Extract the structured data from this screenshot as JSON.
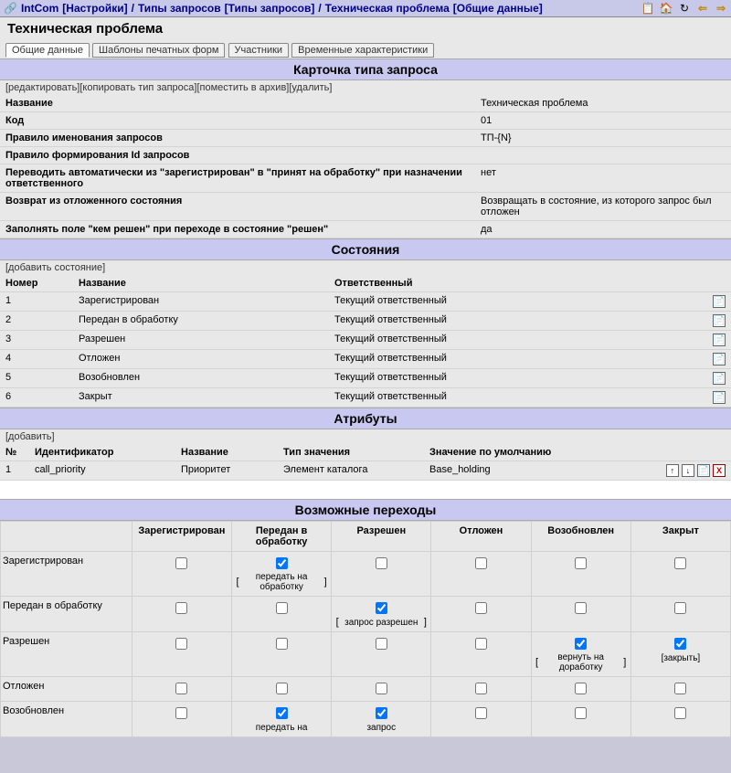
{
  "breadcrumb": {
    "app": "IntCom",
    "seg1": "[Настройки]",
    "sep": " / ",
    "seg2": "Типы запросов",
    "seg2b": "[Типы запросов]",
    "seg3": "Техническая проблема",
    "seg3b": "[Общие данные]"
  },
  "title": "Техническая проблема",
  "tabs": {
    "t0": "Общие данные",
    "t1": "Шаблоны печатных форм",
    "t2": "Участники",
    "t3": "Временные характеристики"
  },
  "card": {
    "heading": "Карточка типа запроса",
    "actions": {
      "edit": "[редактировать]",
      "copy": "[копировать тип запроса]",
      "archive": "[поместить в архив]",
      "delete": "[удалить]"
    },
    "rows": [
      {
        "label": "Название",
        "value": "Техническая проблема"
      },
      {
        "label": "Код",
        "value": "01"
      },
      {
        "label": "Правило именования запросов",
        "value": "ТП-{N}"
      },
      {
        "label": "Правило формирования Id запросов",
        "value": ""
      },
      {
        "label": "Переводить автоматически из \"зарегистрирован\" в \"принят на обработку\" при назначении ответственного",
        "value": "нет"
      },
      {
        "label": "Возврат из отложенного состояния",
        "value": "Возвращать в состояние, из которого запрос был отложен"
      },
      {
        "label": "Заполнять поле \"кем решен\" при переходе в состояние \"решен\"",
        "value": "да"
      }
    ]
  },
  "states": {
    "heading": "Состояния",
    "add": "[добавить состояние]",
    "cols": {
      "num": "Номер",
      "name": "Название",
      "resp": "Ответственный"
    },
    "rows": [
      {
        "num": "1",
        "name": "Зарегистрирован",
        "resp": "Текущий ответственный"
      },
      {
        "num": "2",
        "name": "Передан в обработку",
        "resp": "Текущий ответственный"
      },
      {
        "num": "3",
        "name": "Разрешен",
        "resp": "Текущий ответственный"
      },
      {
        "num": "4",
        "name": "Отложен",
        "resp": "Текущий ответственный"
      },
      {
        "num": "5",
        "name": "Возобновлен",
        "resp": "Текущий ответственный"
      },
      {
        "num": "6",
        "name": "Закрыт",
        "resp": "Текущий ответственный"
      }
    ]
  },
  "attrs": {
    "heading": "Атрибуты",
    "add": "[добавить]",
    "cols": {
      "num": "№",
      "ident": "Идентификатор",
      "name": "Название",
      "type": "Тип значения",
      "default": "Значение по умолчанию"
    },
    "rows": [
      {
        "num": "1",
        "ident": "call_priority",
        "name": "Приоритет",
        "type": "Элемент каталога",
        "default": "Base_holding"
      }
    ]
  },
  "trans": {
    "heading": "Возможные переходы",
    "cols": [
      "Зарегистрирован",
      "Передан в обработку",
      "Разрешен",
      "Отложен",
      "Возобновлен",
      "Закрыт"
    ],
    "rows": [
      {
        "name": "Зарегистрирован",
        "cells": [
          {
            "checked": false
          },
          {
            "checked": true,
            "label": "передать на обработку",
            "brackets": true
          },
          {
            "checked": false
          },
          {
            "checked": false
          },
          {
            "checked": false
          },
          {
            "checked": false
          }
        ]
      },
      {
        "name": "Передан в обработку",
        "cells": [
          {
            "checked": false
          },
          {
            "checked": false
          },
          {
            "checked": true,
            "label": "запрос разрешен",
            "brackets": true
          },
          {
            "checked": false
          },
          {
            "checked": false
          },
          {
            "checked": false
          }
        ]
      },
      {
        "name": "Разрешен",
        "cells": [
          {
            "checked": false
          },
          {
            "checked": false
          },
          {
            "checked": false
          },
          {
            "checked": false
          },
          {
            "checked": true,
            "label": "вернуть на доработку",
            "brackets": true
          },
          {
            "checked": true,
            "label": "[закрыть]"
          }
        ]
      },
      {
        "name": "Отложен",
        "cells": [
          {
            "checked": false
          },
          {
            "checked": false
          },
          {
            "checked": false
          },
          {
            "checked": false
          },
          {
            "checked": false
          },
          {
            "checked": false
          }
        ]
      },
      {
        "name": "Возобновлен",
        "cells": [
          {
            "checked": false
          },
          {
            "checked": true,
            "label": "передать на"
          },
          {
            "checked": true,
            "label": "запрос"
          },
          {
            "checked": false
          },
          {
            "checked": false
          },
          {
            "checked": false
          }
        ]
      }
    ]
  }
}
